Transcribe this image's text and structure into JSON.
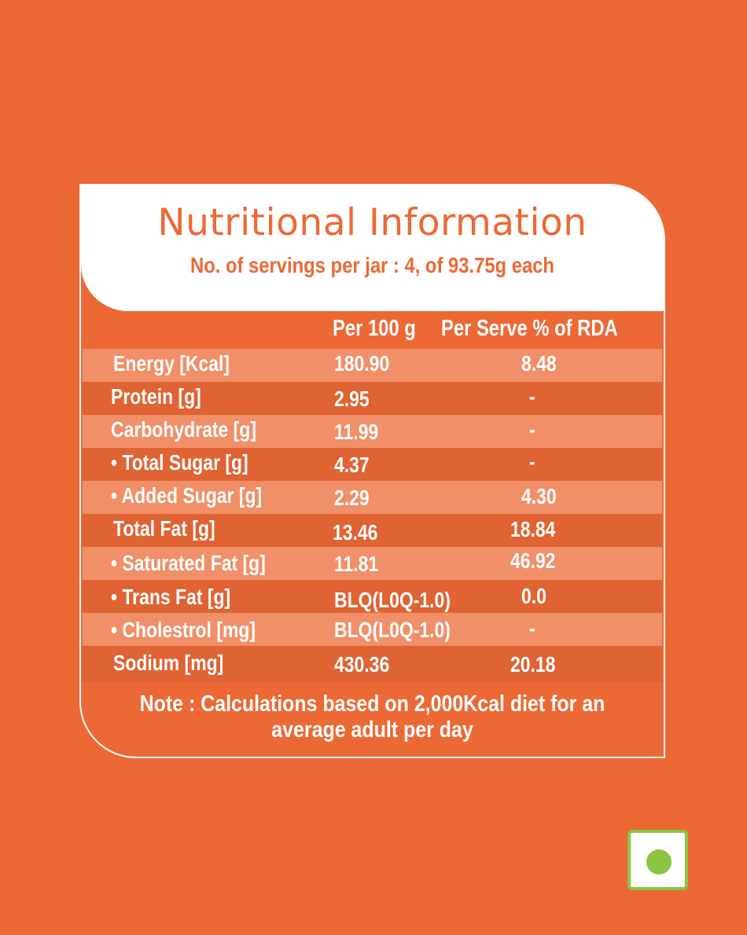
{
  "header": {
    "title": "Nutritional Information",
    "subtitle": "No. of servings per jar : 4, of 93.75g each"
  },
  "columns": {
    "per_100g": "Per 100 g",
    "per_serve_rda": "Per  Serve  %  of RDA"
  },
  "rows": [
    {
      "label": "Energy [Kcal]",
      "per_100g": "180.90",
      "rda": "8.48",
      "sub": false
    },
    {
      "label": "Protein [g]",
      "per_100g": "2.95",
      "rda": "-",
      "sub": false
    },
    {
      "label": "Carbohydrate [g]",
      "per_100g": "11.99",
      "rda": "-",
      "sub": false
    },
    {
      "label": "• Total Sugar [g]",
      "per_100g": "4.37",
      "rda": "-",
      "sub": true
    },
    {
      "label": "• Added Sugar [g]",
      "per_100g": "2.29",
      "rda": "4.30",
      "sub": true
    },
    {
      "label": "Total Fat [g]",
      "per_100g": "13.46",
      "rda": "18.84",
      "sub": false
    },
    {
      "label": "• Saturated Fat [g]",
      "per_100g": "11.81",
      "rda": "46.92",
      "sub": true
    },
    {
      "label": "• Trans Fat [g]",
      "per_100g": "BLQ(L0Q-1.0)",
      "rda": "0.0",
      "sub": true
    },
    {
      "label": "• Cholestrol [mg]",
      "per_100g": "BLQ(L0Q-1.0)",
      "rda": "-",
      "sub": true
    },
    {
      "label": "Sodium [mg]",
      "per_100g": "430.36",
      "rda": "20.18",
      "sub": false
    }
  ],
  "note": "Note :  Calculations based on 2,000Kcal diet for an average adult per day",
  "badge": {
    "name": "vegetarian-mark",
    "border_color": "#8bc53f",
    "dot_color": "#8bc53f"
  },
  "colors": {
    "background": "#ec6935",
    "row_light": "#f08f68",
    "row_dark": "#df6333",
    "text": "#ffffff"
  }
}
